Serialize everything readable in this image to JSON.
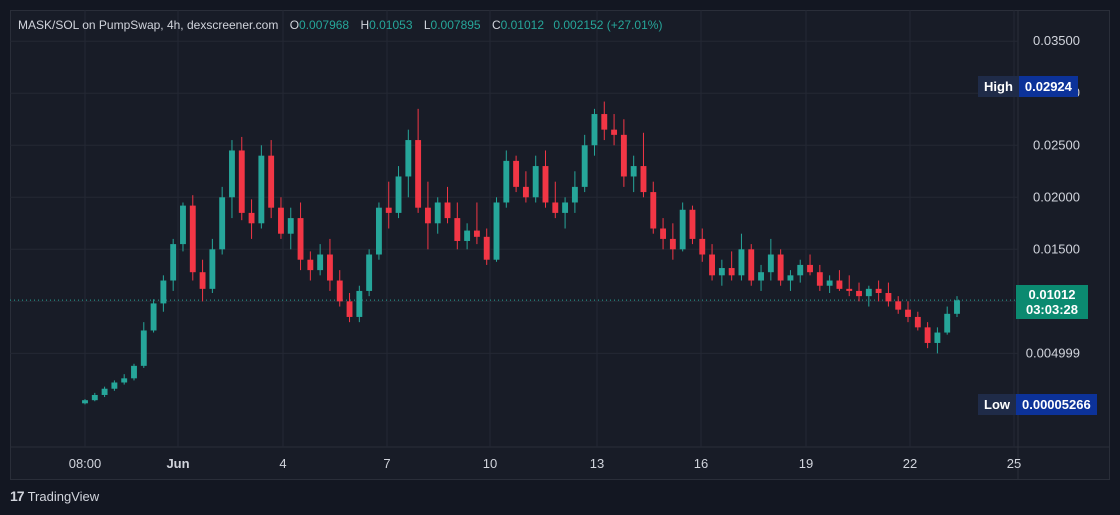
{
  "legend": {
    "symbol": "MASK/SOL on PumpSwap, 4h, dexscreener.com",
    "o_key": "O",
    "o_val": "0.007968",
    "h_key": "H",
    "h_val": "0.01053",
    "l_key": "L",
    "l_val": "0.007895",
    "c_key": "C",
    "c_val": "0.01012",
    "change": "0.002152 (+27.01%)"
  },
  "tags": {
    "high_label": "High",
    "high_value": "0.02924",
    "low_label": "Low",
    "low_value": "0.00005266",
    "last_price": "0.01012",
    "countdown": "03:03:28"
  },
  "footer": {
    "logo_glyph": "17",
    "brand": "TradingView"
  },
  "colors": {
    "up": "#26a69a",
    "down": "#f23645",
    "grid": "#242834",
    "text": "#d1d4dc"
  },
  "chart_data": {
    "type": "candlestick",
    "y_tick_labels": [
      "0.03500",
      "0.03000",
      "0.02500",
      "0.02000",
      "0.01500",
      "0.01000",
      "0.004999"
    ],
    "y_tick_values": [
      0.035,
      0.03,
      0.025,
      0.02,
      0.015,
      0.01,
      0.004999
    ],
    "x_tick_labels": [
      "08:00",
      "Jun",
      "4",
      "7",
      "10",
      "13",
      "16",
      "19",
      "22",
      "25"
    ],
    "ylim": [
      -0.004,
      0.038
    ],
    "last_price": 0.01012,
    "candles": [
      [
        0.0002,
        0.0006,
        0.0001,
        0.0005
      ],
      [
        0.0005,
        0.0012,
        0.0004,
        0.001
      ],
      [
        0.001,
        0.0018,
        0.0008,
        0.0016
      ],
      [
        0.0016,
        0.0024,
        0.0014,
        0.0022
      ],
      [
        0.0022,
        0.003,
        0.002,
        0.0026
      ],
      [
        0.0026,
        0.004,
        0.0024,
        0.0038
      ],
      [
        0.0038,
        0.008,
        0.0036,
        0.0072
      ],
      [
        0.0072,
        0.0102,
        0.007,
        0.0098
      ],
      [
        0.0098,
        0.0125,
        0.009,
        0.012
      ],
      [
        0.012,
        0.016,
        0.011,
        0.0155
      ],
      [
        0.0155,
        0.0195,
        0.0148,
        0.0192
      ],
      [
        0.0192,
        0.0202,
        0.012,
        0.0128
      ],
      [
        0.0128,
        0.014,
        0.01,
        0.0112
      ],
      [
        0.0112,
        0.016,
        0.0108,
        0.015
      ],
      [
        0.015,
        0.021,
        0.0145,
        0.02
      ],
      [
        0.02,
        0.0255,
        0.018,
        0.0245
      ],
      [
        0.0245,
        0.0258,
        0.0178,
        0.0185
      ],
      [
        0.0185,
        0.0198,
        0.016,
        0.0175
      ],
      [
        0.0175,
        0.025,
        0.017,
        0.024
      ],
      [
        0.024,
        0.0255,
        0.018,
        0.019
      ],
      [
        0.019,
        0.02,
        0.016,
        0.0165
      ],
      [
        0.0165,
        0.019,
        0.015,
        0.018
      ],
      [
        0.018,
        0.0195,
        0.013,
        0.014
      ],
      [
        0.014,
        0.0148,
        0.012,
        0.013
      ],
      [
        0.013,
        0.0155,
        0.0125,
        0.0145
      ],
      [
        0.0145,
        0.016,
        0.011,
        0.012
      ],
      [
        0.012,
        0.013,
        0.0095,
        0.01
      ],
      [
        0.01,
        0.0108,
        0.008,
        0.0085
      ],
      [
        0.0085,
        0.0115,
        0.008,
        0.011
      ],
      [
        0.011,
        0.015,
        0.0105,
        0.0145
      ],
      [
        0.0145,
        0.0195,
        0.014,
        0.019
      ],
      [
        0.019,
        0.0215,
        0.017,
        0.0185
      ],
      [
        0.0185,
        0.023,
        0.018,
        0.022
      ],
      [
        0.022,
        0.0265,
        0.02,
        0.0255
      ],
      [
        0.0255,
        0.0285,
        0.0185,
        0.019
      ],
      [
        0.019,
        0.0215,
        0.015,
        0.0175
      ],
      [
        0.0175,
        0.02,
        0.0165,
        0.0195
      ],
      [
        0.0195,
        0.021,
        0.0175,
        0.018
      ],
      [
        0.018,
        0.0195,
        0.015,
        0.0158
      ],
      [
        0.0158,
        0.0175,
        0.015,
        0.0168
      ],
      [
        0.0168,
        0.0195,
        0.0155,
        0.0162
      ],
      [
        0.0162,
        0.017,
        0.0135,
        0.014
      ],
      [
        0.014,
        0.02,
        0.0138,
        0.0195
      ],
      [
        0.0195,
        0.0245,
        0.019,
        0.0235
      ],
      [
        0.0235,
        0.024,
        0.0205,
        0.021
      ],
      [
        0.021,
        0.0225,
        0.0195,
        0.02
      ],
      [
        0.02,
        0.024,
        0.0195,
        0.023
      ],
      [
        0.023,
        0.0245,
        0.019,
        0.0195
      ],
      [
        0.0195,
        0.0215,
        0.018,
        0.0185
      ],
      [
        0.0185,
        0.02,
        0.017,
        0.0195
      ],
      [
        0.0195,
        0.0225,
        0.0185,
        0.021
      ],
      [
        0.021,
        0.026,
        0.0205,
        0.025
      ],
      [
        0.025,
        0.0285,
        0.024,
        0.028
      ],
      [
        0.028,
        0.0292,
        0.0255,
        0.0265
      ],
      [
        0.0265,
        0.028,
        0.025,
        0.026
      ],
      [
        0.026,
        0.0275,
        0.021,
        0.022
      ],
      [
        0.022,
        0.024,
        0.0205,
        0.023
      ],
      [
        0.023,
        0.0262,
        0.02,
        0.0205
      ],
      [
        0.0205,
        0.0215,
        0.0165,
        0.017
      ],
      [
        0.017,
        0.018,
        0.015,
        0.016
      ],
      [
        0.016,
        0.0175,
        0.014,
        0.015
      ],
      [
        0.015,
        0.0195,
        0.0148,
        0.0188
      ],
      [
        0.0188,
        0.0192,
        0.0155,
        0.016
      ],
      [
        0.016,
        0.017,
        0.0138,
        0.0145
      ],
      [
        0.0145,
        0.0155,
        0.012,
        0.0125
      ],
      [
        0.0125,
        0.014,
        0.0115,
        0.0132
      ],
      [
        0.0132,
        0.0148,
        0.012,
        0.0125
      ],
      [
        0.0125,
        0.0165,
        0.012,
        0.015
      ],
      [
        0.015,
        0.0155,
        0.0115,
        0.012
      ],
      [
        0.012,
        0.0135,
        0.011,
        0.0128
      ],
      [
        0.0128,
        0.016,
        0.012,
        0.0145
      ],
      [
        0.0145,
        0.015,
        0.0115,
        0.012
      ],
      [
        0.012,
        0.013,
        0.011,
        0.0125
      ],
      [
        0.0125,
        0.014,
        0.0118,
        0.0135
      ],
      [
        0.0135,
        0.0145,
        0.0125,
        0.0128
      ],
      [
        0.0128,
        0.0135,
        0.011,
        0.0115
      ],
      [
        0.0115,
        0.0125,
        0.0108,
        0.012
      ],
      [
        0.012,
        0.013,
        0.011,
        0.0112
      ],
      [
        0.0112,
        0.0125,
        0.0105,
        0.011
      ],
      [
        0.011,
        0.0118,
        0.01,
        0.0105
      ],
      [
        0.0105,
        0.0115,
        0.0095,
        0.0112
      ],
      [
        0.0112,
        0.012,
        0.01,
        0.0108
      ],
      [
        0.0108,
        0.0118,
        0.0095,
        0.01
      ],
      [
        0.01,
        0.0105,
        0.0088,
        0.0092
      ],
      [
        0.0092,
        0.01,
        0.008,
        0.0085
      ],
      [
        0.0085,
        0.009,
        0.0072,
        0.0075
      ],
      [
        0.0075,
        0.008,
        0.0055,
        0.006
      ],
      [
        0.006,
        0.0075,
        0.005,
        0.007
      ],
      [
        0.007,
        0.0095,
        0.0068,
        0.0088
      ],
      [
        0.0088,
        0.0105,
        0.0085,
        0.0101
      ]
    ]
  }
}
